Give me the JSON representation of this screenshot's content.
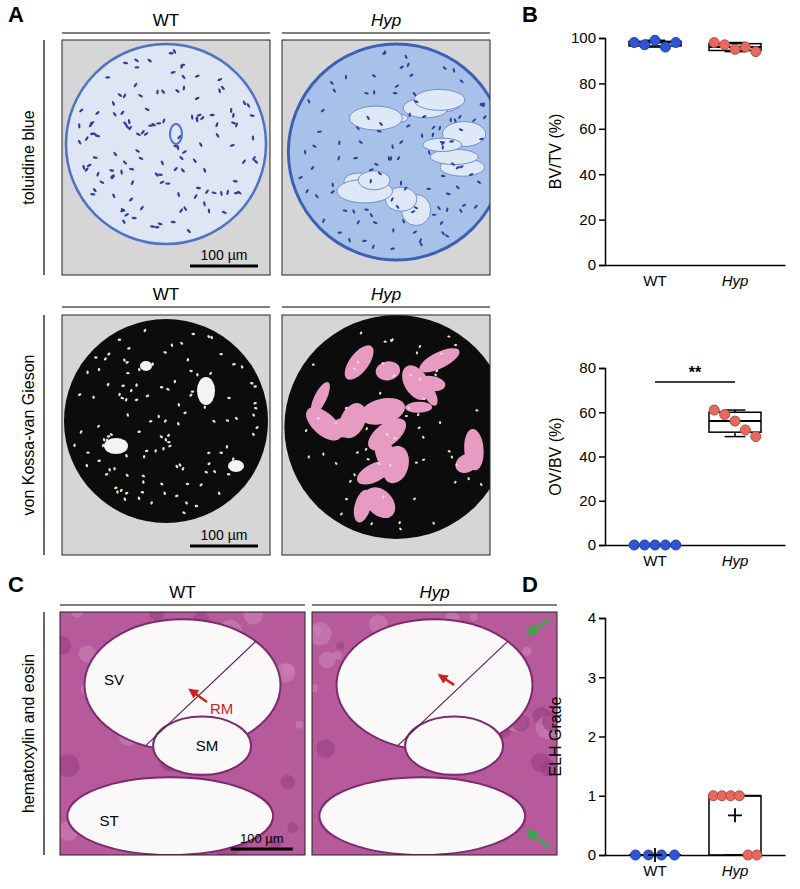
{
  "panels": [
    "A",
    "B",
    "C",
    "D"
  ],
  "images": {
    "columns": [
      "WT",
      "Hyp"
    ],
    "stains_A": [
      "toluidine blue",
      "von Kossa-van Gieson"
    ],
    "stain_C": "hematoxylin and eosin",
    "scale_bar": "100 µm",
    "labels_C": [
      "SV",
      "RM",
      "SM",
      "ST"
    ]
  },
  "chart_data": [
    {
      "type": "box",
      "y_label": "BV/TV (%)",
      "categories": [
        "WT",
        "Hyp"
      ],
      "colors": [
        "#2f55d6",
        "#e8685c"
      ],
      "values": [
        [
          98,
          97,
          99,
          96,
          98
        ],
        [
          98,
          97,
          95,
          96,
          94
        ]
      ],
      "boxes": [
        {
          "min": 96,
          "q1": 96.5,
          "median": 98,
          "q3": 98.5,
          "max": 99
        },
        {
          "min": 94,
          "q1": 94.5,
          "median": 96,
          "q3": 97.5,
          "max": 98
        }
      ],
      "ylim": [
        0,
        100
      ],
      "yticks": [
        0,
        20,
        40,
        60,
        80,
        100
      ]
    },
    {
      "type": "box",
      "y_label": "OV/BV (%)",
      "categories": [
        "WT",
        "Hyp"
      ],
      "colors": [
        "#2f55d6",
        "#e8685c"
      ],
      "values": [
        [
          0,
          0,
          0,
          0,
          0
        ],
        [
          61,
          59,
          56,
          52,
          49
        ]
      ],
      "boxes": [
        {
          "min": 0,
          "q1": 0,
          "median": 0,
          "q3": 0,
          "max": 0
        },
        {
          "min": 49,
          "q1": 51,
          "median": 56,
          "q3": 60,
          "max": 61
        }
      ],
      "annotations": [
        "**"
      ],
      "ylim": [
        0,
        80
      ],
      "yticks": [
        0,
        20,
        40,
        60,
        80
      ]
    },
    {
      "type": "box",
      "y_label": "ELH Grade",
      "categories": [
        "WT",
        "Hyp"
      ],
      "colors": [
        "#2f55d6",
        "#e8685c"
      ],
      "values": [
        [
          0,
          0,
          0,
          0
        ],
        [
          1,
          1,
          1,
          1,
          0,
          0
        ]
      ],
      "boxes": [
        {
          "min": 0,
          "q1": 0,
          "median": 0,
          "q3": 0,
          "max": 0
        },
        {
          "min": 0,
          "q1": 0,
          "median": 1,
          "q3": 1,
          "max": 1
        }
      ],
      "means": [
        0,
        0.67
      ],
      "ylim": [
        0,
        4
      ],
      "yticks": [
        0,
        1,
        2,
        3,
        4
      ]
    }
  ]
}
